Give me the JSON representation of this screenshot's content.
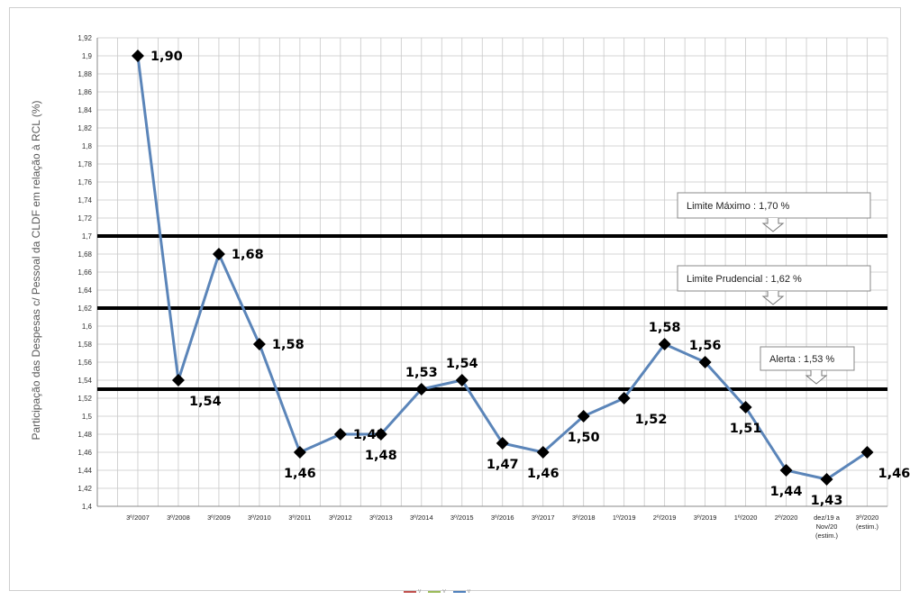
{
  "chart_data": {
    "type": "line",
    "ylabel": "Participação das Despesas c/ Pessoal da CLDF em relação à RCL  (%)",
    "xlabel": "",
    "ylim": [
      1.4,
      1.92
    ],
    "ytick_step": 0.02,
    "yticks": [
      "1,4",
      "1,42",
      "1,44",
      "1,46",
      "1,48",
      "1,5",
      "1,52",
      "1,54",
      "1,56",
      "1,58",
      "1,6",
      "1,62",
      "1,64",
      "1,66",
      "1,68",
      "1,7",
      "1,72",
      "1,74",
      "1,76",
      "1,78",
      "1,8",
      "1,82",
      "1,84",
      "1,86",
      "1,88",
      "1,9",
      "1,92"
    ],
    "categories": [
      [
        "3º/2007"
      ],
      [
        "3º/2008"
      ],
      [
        "3º/2009"
      ],
      [
        "3º/2010"
      ],
      [
        "3º/2011"
      ],
      [
        "3º/2012"
      ],
      [
        "3º/2013"
      ],
      [
        "3º/2014"
      ],
      [
        "3º/2015"
      ],
      [
        "3º/2016"
      ],
      [
        "3º/2017"
      ],
      [
        "3º/2018"
      ],
      [
        "1º/2019"
      ],
      [
        "2º/2019"
      ],
      [
        "3º/2019"
      ],
      [
        "1º/2020"
      ],
      [
        "2º/2020"
      ],
      [
        "dez/19 a",
        "Nov/20",
        "(estim.)"
      ],
      [
        "3º/2020",
        "(estim.)"
      ]
    ],
    "series": [
      {
        "color": "#5b85b9",
        "values": [
          1.9,
          1.54,
          1.68,
          1.58,
          1.46,
          1.48,
          1.48,
          1.53,
          1.54,
          1.47,
          1.46,
          1.5,
          1.52,
          1.58,
          1.56,
          1.51,
          1.44,
          1.43,
          1.46
        ],
        "labels": [
          "1,90",
          "1,54",
          "1,68",
          "1,58",
          "1,46",
          "1,48",
          "1,48",
          "1,53",
          "1,54",
          "1,47",
          "1,46",
          "1,50",
          "1,52",
          "1,58",
          "1,56",
          "1,51",
          "1,44",
          "1,43",
          "1,46"
        ],
        "label_pos": [
          "right",
          "below-right",
          "right",
          "right",
          "below",
          "right",
          "below",
          "above",
          "above",
          "below",
          "below",
          "below",
          "below-right",
          "above",
          "above",
          "below",
          "below",
          "below",
          "below-right"
        ]
      }
    ],
    "reference_lines": [
      {
        "value": 1.7,
        "label": "Limite Máximo  :  1,70 %"
      },
      {
        "value": 1.62,
        "label": "Limite Prudencial  :  1,62 %"
      },
      {
        "value": 1.53,
        "label": "Alerta :  1,53 %"
      }
    ],
    "grid": true,
    "marker": "diamond",
    "line_color": "#5b85b9",
    "reference_color": "#000000",
    "legend": {
      "position": "bottom-center",
      "entries": [
        {
          "label": "V",
          "color": "#c0504d"
        },
        {
          "label": "V",
          "color": "#9bbb59"
        },
        {
          "label": "V",
          "color": "#4f81bd"
        }
      ]
    }
  }
}
